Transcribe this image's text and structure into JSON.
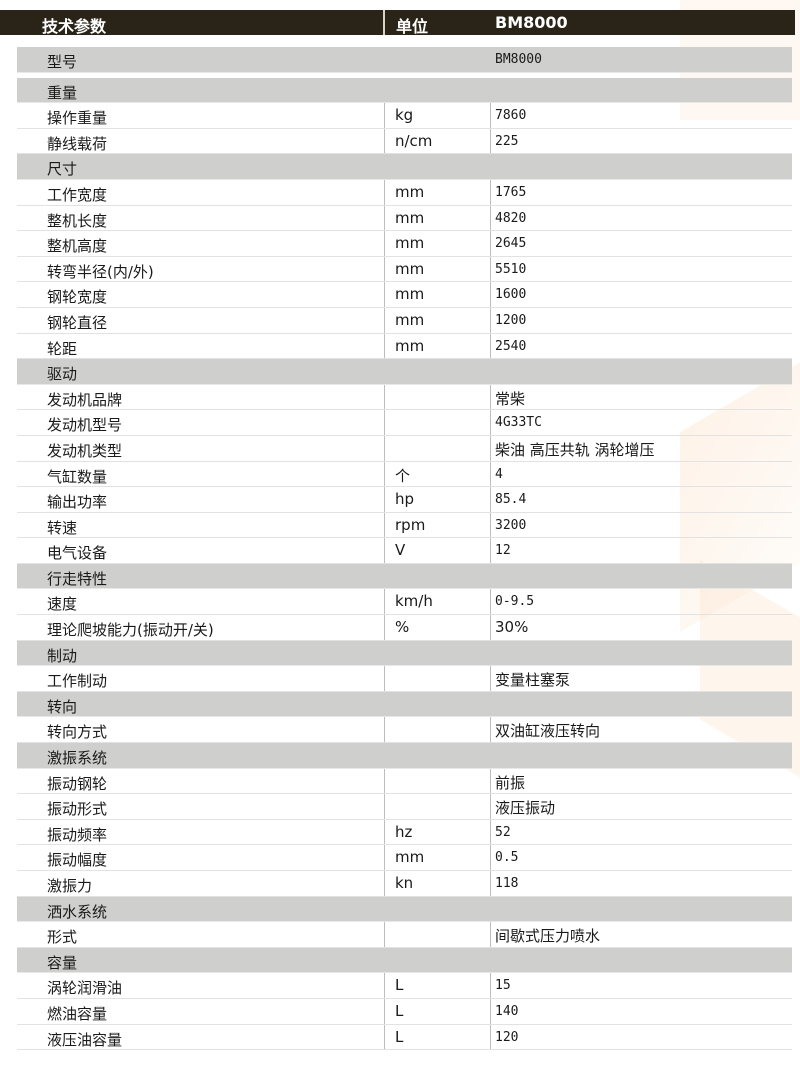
{
  "header": {
    "col1": "技术参数",
    "col2": "单位",
    "col3": "BM8000"
  },
  "model": {
    "label": "型号",
    "value": "BM8000"
  },
  "rows": [
    {
      "section": "重量"
    },
    {
      "label": "操作重量",
      "unit": "kg",
      "value": "7860"
    },
    {
      "label": "静线载荷",
      "unit": "n/cm",
      "value": "225"
    },
    {
      "section": "尺寸"
    },
    {
      "label": "工作宽度",
      "unit": "mm",
      "value": "1765"
    },
    {
      "label": "整机长度",
      "unit": "mm",
      "value": "4820"
    },
    {
      "label": "整机高度",
      "unit": "mm",
      "value": "2645"
    },
    {
      "label": "转弯半径(内/外)",
      "unit": "mm",
      "value": "5510"
    },
    {
      "label": "钢轮宽度",
      "unit": "mm",
      "value": "1600"
    },
    {
      "label": "钢轮直径",
      "unit": "mm",
      "value": "1200"
    },
    {
      "label": "轮距",
      "unit": "mm",
      "value": "2540"
    },
    {
      "section": "驱动"
    },
    {
      "label": "发动机品牌",
      "unit": "",
      "value": "常柴"
    },
    {
      "label": "发动机型号",
      "unit": "",
      "value": "4G33TC"
    },
    {
      "label": "发动机类型",
      "unit": "",
      "value": "柴油 高压共轨 涡轮增压"
    },
    {
      "label": "气缸数量",
      "unit": "个",
      "value": "4"
    },
    {
      "label": "输出功率",
      "unit": "hp",
      "value": "85.4"
    },
    {
      "label": "转速",
      "unit": "rpm",
      "value": "3200"
    },
    {
      "label": "电气设备",
      "unit": "V",
      "value": "12"
    },
    {
      "section": "行走特性"
    },
    {
      "label": "速度",
      "unit": "km/h",
      "value": "0-9.5"
    },
    {
      "label": "理论爬坡能力(振动开/关)",
      "unit": "%",
      "value": "30%"
    },
    {
      "section": "制动"
    },
    {
      "label": "工作制动",
      "unit": "",
      "value": "变量柱塞泵"
    },
    {
      "section": "转向"
    },
    {
      "label": "转向方式",
      "unit": "",
      "value": "双油缸液压转向"
    },
    {
      "section": "激振系统"
    },
    {
      "label": "振动钢轮",
      "unit": "",
      "value": "前振"
    },
    {
      "label": "振动形式",
      "unit": "",
      "value": "液压振动"
    },
    {
      "label": "振动频率",
      "unit": "hz",
      "value": "52"
    },
    {
      "label": "振动幅度",
      "unit": "mm",
      "value": "0.5"
    },
    {
      "label": "激振力",
      "unit": "kn",
      "value": "118"
    },
    {
      "section": "洒水系统"
    },
    {
      "label": "形式",
      "unit": "",
      "value": "间歇式压力喷水"
    },
    {
      "section": "容量"
    },
    {
      "label": "涡轮润滑油",
      "unit": "L",
      "value": "15"
    },
    {
      "label": "燃油容量",
      "unit": "L",
      "value": "140"
    },
    {
      "label": "液压油容量",
      "unit": "L",
      "value": "120"
    }
  ]
}
